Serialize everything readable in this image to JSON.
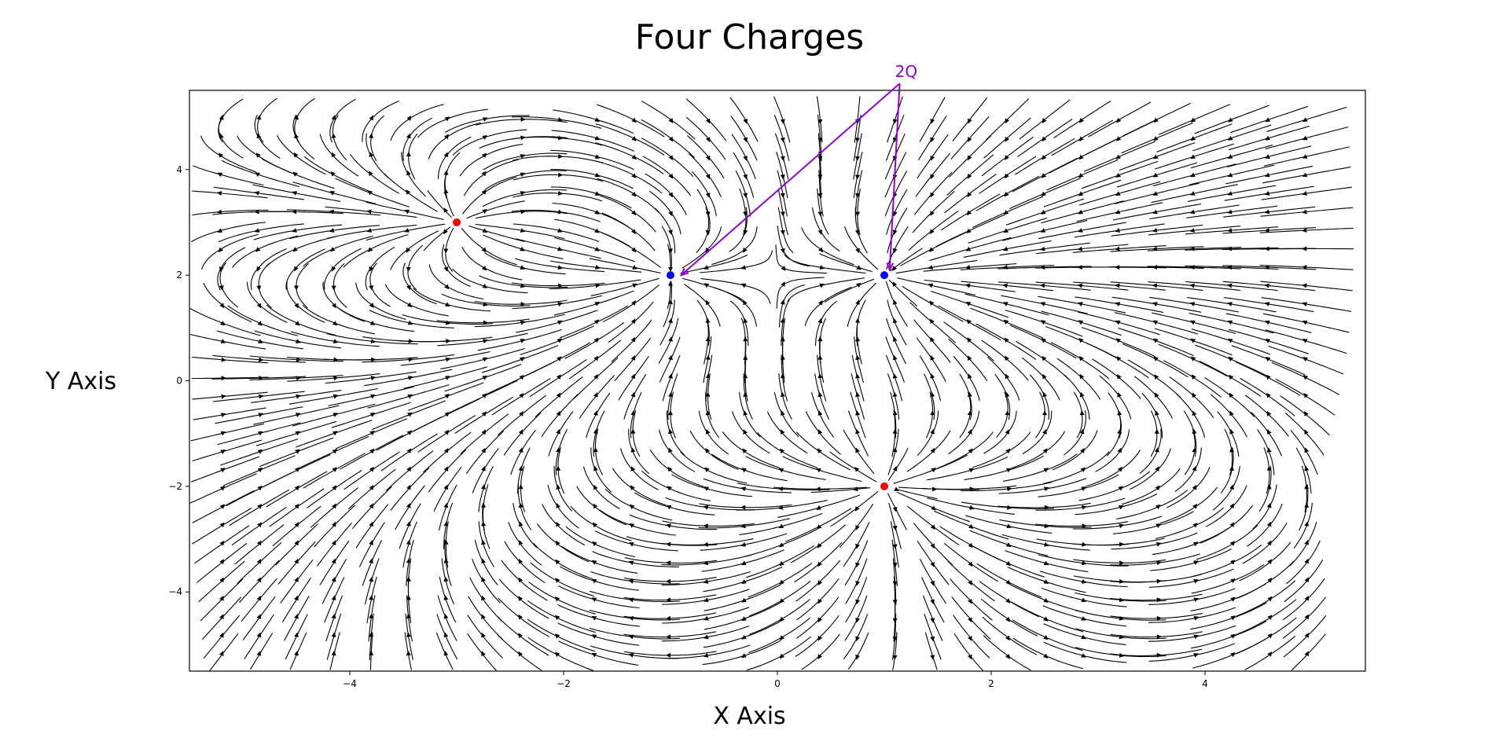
{
  "chart_data": {
    "type": "streamplot",
    "title": "Four Charges",
    "xlabel": "X Axis",
    "ylabel": "Y Axis",
    "xlim": [
      -5.5,
      5.5
    ],
    "ylim": [
      -5.5,
      5.5
    ],
    "xticks": [
      -4,
      -2,
      0,
      2,
      4
    ],
    "yticks": [
      -4,
      -2,
      0,
      2,
      4
    ],
    "xtick_labels": [
      "−4",
      "−2",
      "0",
      "2",
      "4"
    ],
    "ytick_labels": [
      "−4",
      "−2",
      "0",
      "2",
      "4"
    ],
    "grid": false,
    "charges": [
      {
        "x": -3,
        "y": 3,
        "q": 1,
        "color": "#ff0000"
      },
      {
        "x": -1,
        "y": 2,
        "q": -2,
        "color": "#0000ff"
      },
      {
        "x": 1,
        "y": 2,
        "q": -2,
        "color": "#0000ff"
      },
      {
        "x": 1,
        "y": -2,
        "q": 1,
        "color": "#ff0000"
      }
    ],
    "annotation": {
      "text": "2Q",
      "color": "#9400d3",
      "text_position": [
        1.1,
        5.75
      ],
      "targets": [
        [
          -0.9,
          2.0
        ],
        [
          1.05,
          2.1
        ]
      ]
    },
    "line_color": "#000000"
  }
}
